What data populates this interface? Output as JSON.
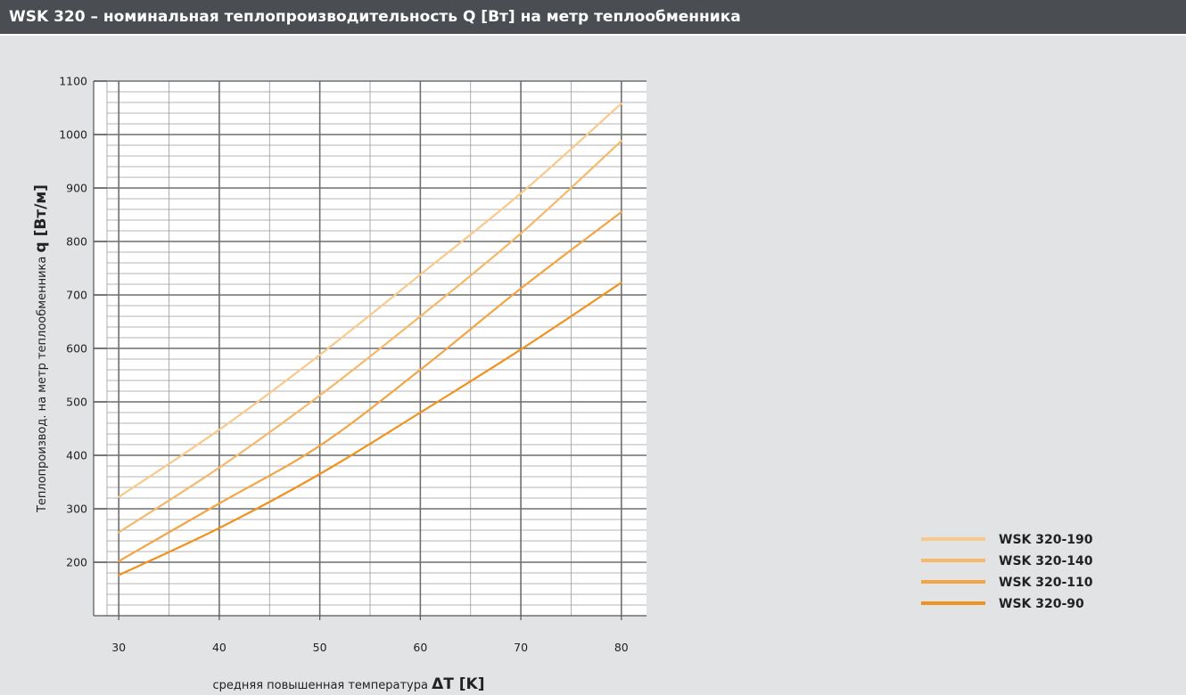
{
  "header": {
    "title": "WSK 320 – номинальная теплопроизводительность  Q [Вт] на метр теплообменника"
  },
  "chart_data": {
    "type": "line",
    "xlabel_prefix": "средняя повышенная температура ",
    "xlabel_symbol": "ΔT [K]",
    "ylabel_prefix": "Теплопроизвод. на метр теплообменника ",
    "ylabel_symbol": "q [Вт/м]",
    "xlim": [
      27.5,
      82.5
    ],
    "ylim": [
      100,
      1100
    ],
    "x_ticks": [
      30,
      40,
      50,
      60,
      70,
      80
    ],
    "y_ticks": [
      200,
      300,
      400,
      500,
      600,
      700,
      800,
      900,
      1000,
      1100
    ],
    "x": [
      30,
      40,
      50,
      60,
      70,
      80
    ],
    "series": [
      {
        "name": "WSK 320-190",
        "color": "#f8c98a",
        "values": [
          322,
          448,
          588,
          738,
          890,
          1058
        ]
      },
      {
        "name": "WSK 320-140",
        "color": "#f6b86a",
        "values": [
          256,
          377,
          512,
          660,
          815,
          988
        ]
      },
      {
        "name": "WSK 320-110",
        "color": "#f3a545",
        "values": [
          202,
          310,
          418,
          560,
          712,
          855
        ]
      },
      {
        "name": "WSK 320-90",
        "color": "#f0921f",
        "values": [
          176,
          264,
          365,
          480,
          598,
          723
        ]
      }
    ],
    "legend_position": "bottom-right",
    "grid": true
  }
}
